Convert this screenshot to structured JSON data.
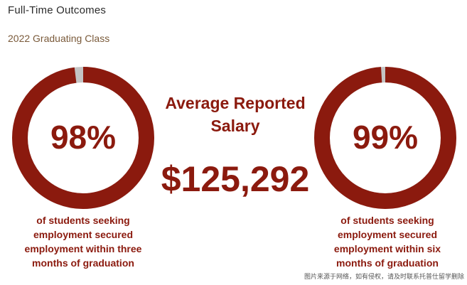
{
  "header": {
    "title": "Full-Time Outcomes",
    "subtitle": "2022 Graduating Class"
  },
  "salary": {
    "label": "Average Reported Salary",
    "value": "$125,292"
  },
  "colors": {
    "ring": "#8b1a0e",
    "remainder": "#c4c4c4",
    "text": "#8b1a0e"
  },
  "chart_data": [
    {
      "type": "pie",
      "values": [
        98,
        2
      ],
      "percent_label": "98%",
      "caption": "of students seeking employment secured employment within three months of graduation"
    },
    {
      "type": "pie",
      "values": [
        99,
        1
      ],
      "percent_label": "99%",
      "caption": "of students seeking employment secured employment within six months of graduation"
    }
  ],
  "footer": {
    "watermark": "图片来源于网络，如有侵权，请及时联系托普仕留学删除"
  }
}
